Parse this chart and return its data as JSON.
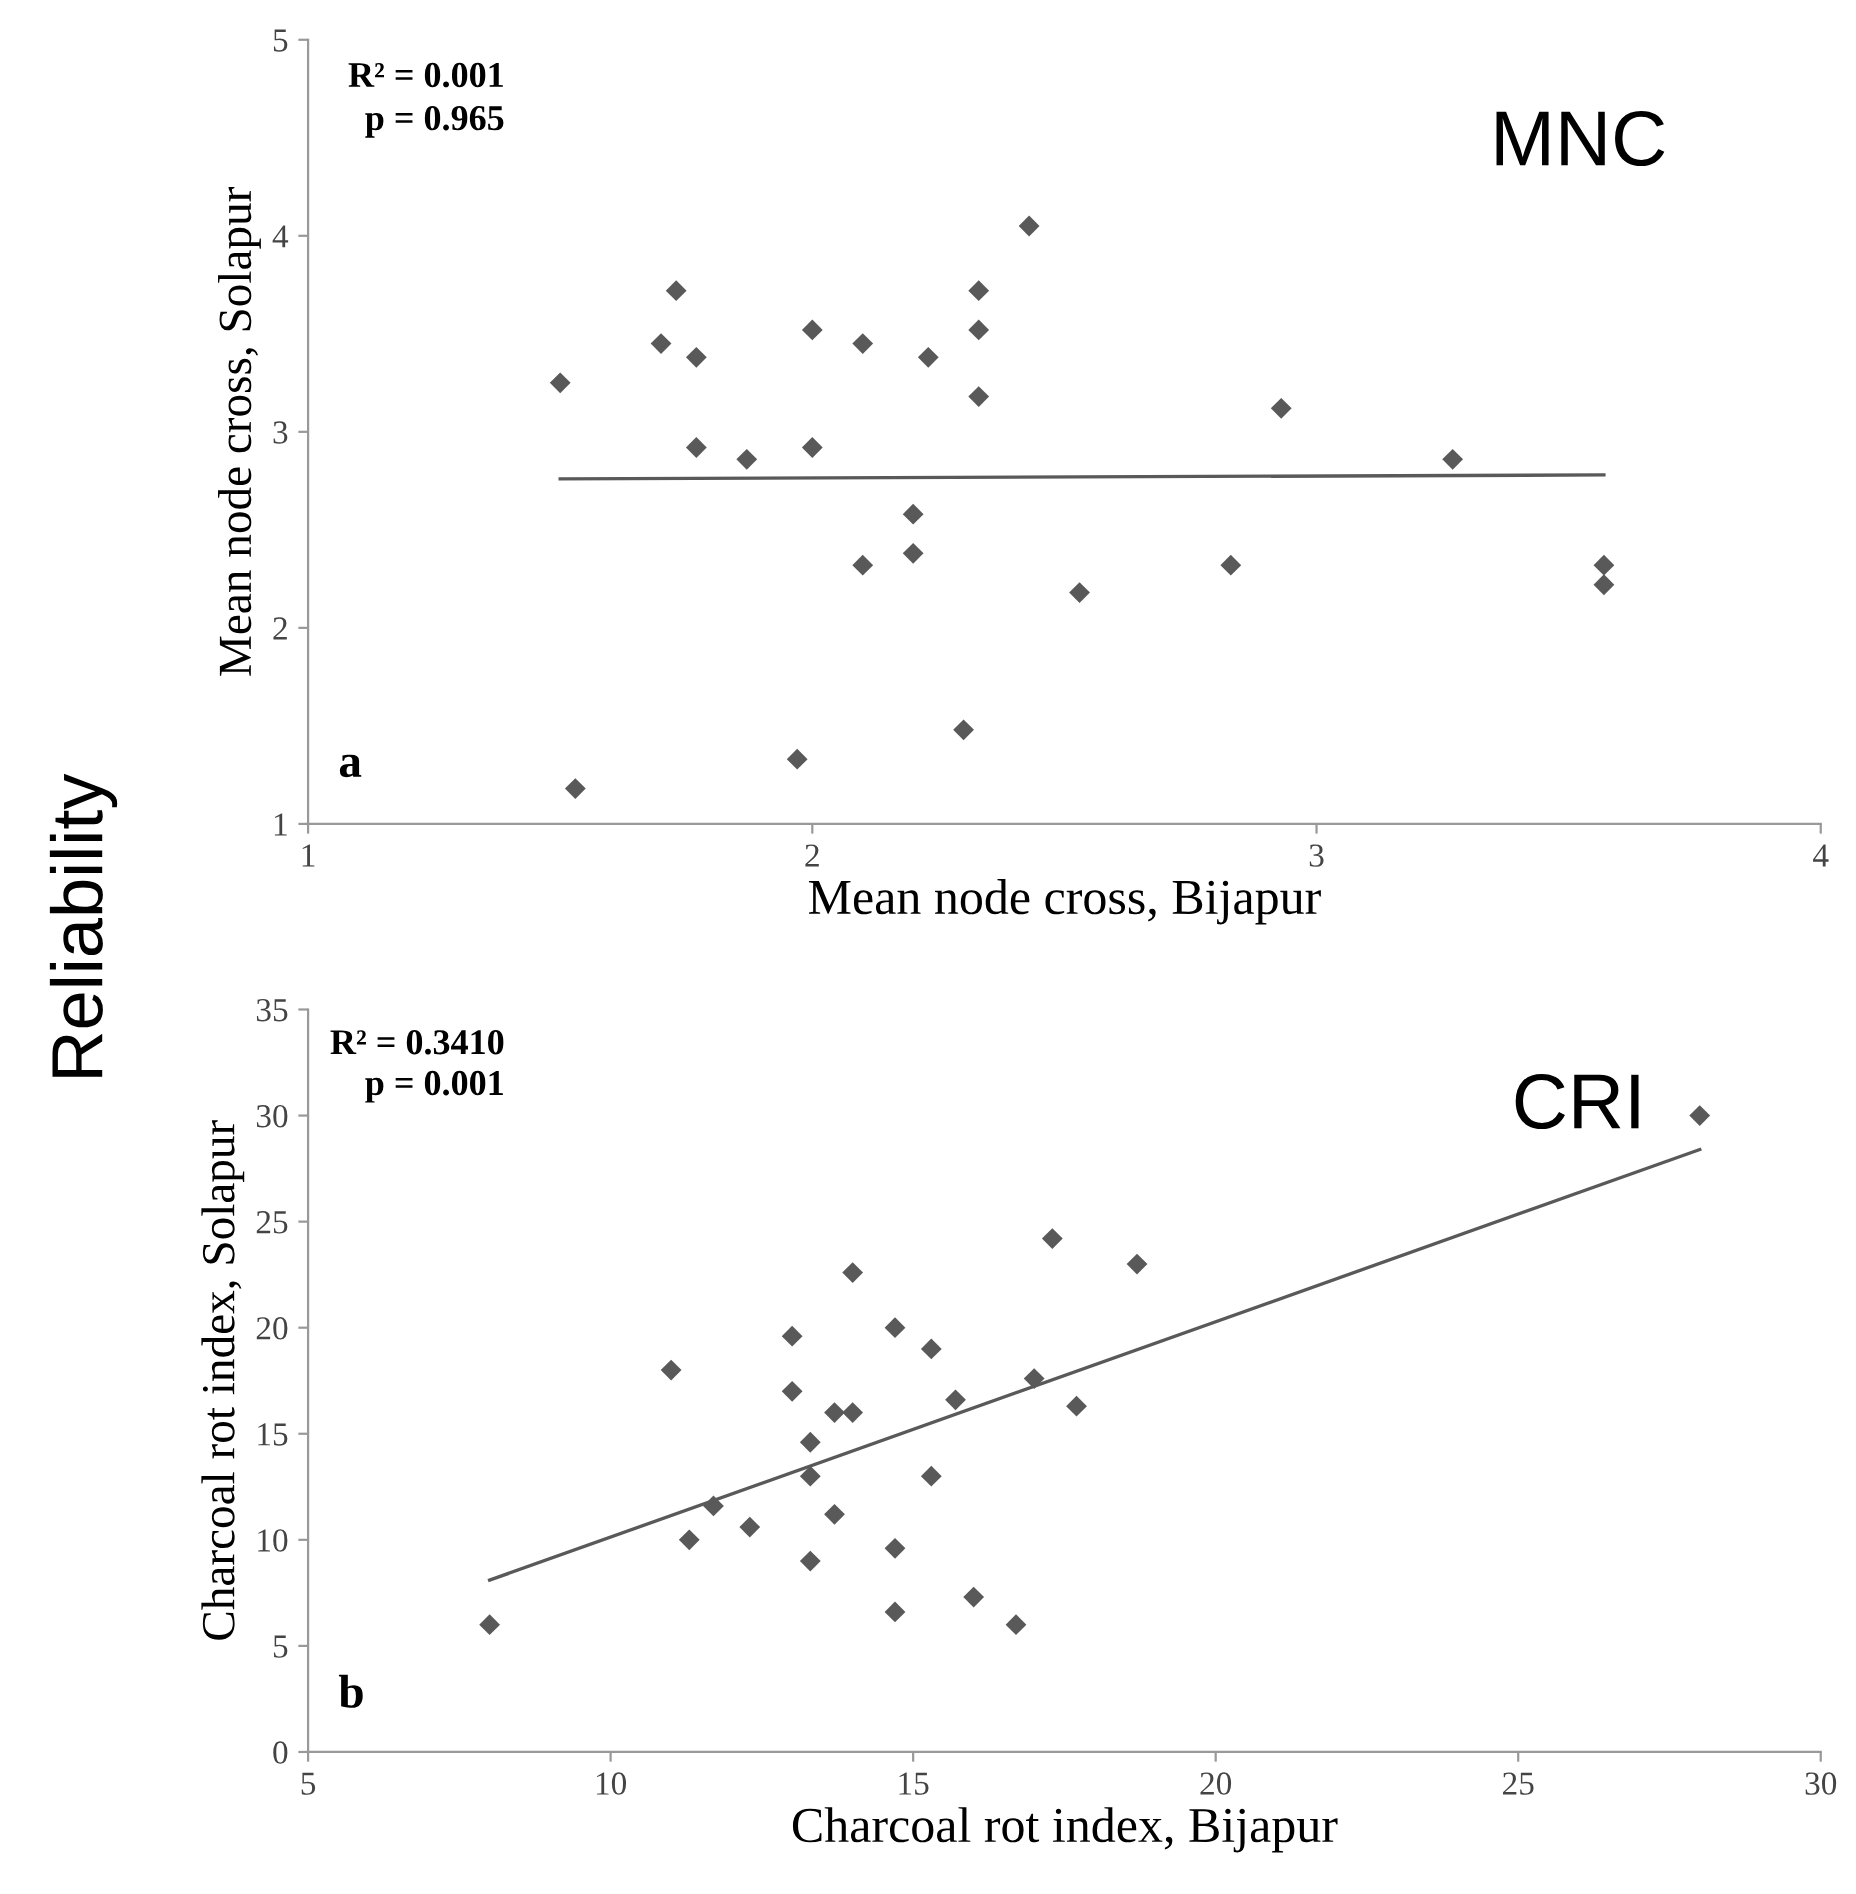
{
  "chart_data": [
    {
      "type": "scatter",
      "xlabel": "Mean node cross, Bijapur",
      "ylabel": "Mean node cross, Solapur",
      "xlim": [
        1,
        4
      ],
      "xticks": [
        1,
        2,
        3,
        4
      ],
      "ylim": [
        1,
        5
      ],
      "yticks": [
        1,
        2,
        3,
        4,
        5
      ],
      "grid": false,
      "legend": false,
      "annotations": [
        "R² = 0.001",
        "p = 0.965",
        "a",
        "MNC",
        "Reliability"
      ],
      "series": [
        {
          "marker": "diamond",
          "color": "#595959",
          "x": [
            1.5,
            1.53,
            1.7,
            1.73,
            1.77,
            1.77,
            1.87,
            1.97,
            2.0,
            2.0,
            2.1,
            2.1,
            2.23,
            2.2,
            2.2,
            2.3,
            2.33,
            2.33,
            2.33,
            2.43,
            2.53,
            2.83,
            2.93,
            3.27,
            3.57,
            3.57
          ],
          "values": [
            3.25,
            1.18,
            3.45,
            3.72,
            3.38,
            2.92,
            2.86,
            1.33,
            3.52,
            2.92,
            3.45,
            2.32,
            3.38,
            2.58,
            2.38,
            1.48,
            3.72,
            3.52,
            3.18,
            4.05,
            2.18,
            2.32,
            3.12,
            2.86,
            2.32,
            2.22
          ]
        },
        {
          "type": "line",
          "color": "#595959",
          "x": [
            1.5,
            3.57
          ],
          "values": [
            2.76,
            2.78
          ]
        }
      ]
    },
    {
      "type": "scatter",
      "xlabel": "Charcoal rot index, Bijapur",
      "ylabel": "Charcoal rot index, Solapur",
      "xlim": [
        5,
        30
      ],
      "xticks": [
        5,
        10,
        15,
        20,
        25,
        30
      ],
      "ylim": [
        0,
        35
      ],
      "yticks": [
        0,
        5,
        10,
        15,
        20,
        25,
        30,
        35
      ],
      "grid": false,
      "legend": false,
      "annotations": [
        "R² = 0.3410",
        "p = 0.001",
        "b",
        "CRI"
      ],
      "series": [
        {
          "marker": "diamond",
          "color": "#595959",
          "x": [
            8,
            11,
            11.3,
            11.7,
            12.3,
            13,
            13,
            13.3,
            13.3,
            13.3,
            13.7,
            13.7,
            14,
            14,
            14.7,
            14.7,
            14.7,
            15.3,
            15.3,
            15.7,
            16,
            16.7,
            17,
            17.3,
            17.7,
            18.7,
            28
          ],
          "values": [
            6,
            18,
            10,
            11.6,
            10.6,
            19.6,
            17,
            14.6,
            13,
            9,
            16,
            11.2,
            16,
            22.6,
            20,
            9.6,
            6.6,
            19,
            13,
            16.6,
            7.3,
            6,
            17.6,
            24.2,
            16.3,
            23,
            30
          ]
        },
        {
          "type": "line",
          "color": "#595959",
          "x": [
            8,
            28
          ],
          "values": [
            8.1,
            28.4
          ]
        }
      ]
    }
  ]
}
